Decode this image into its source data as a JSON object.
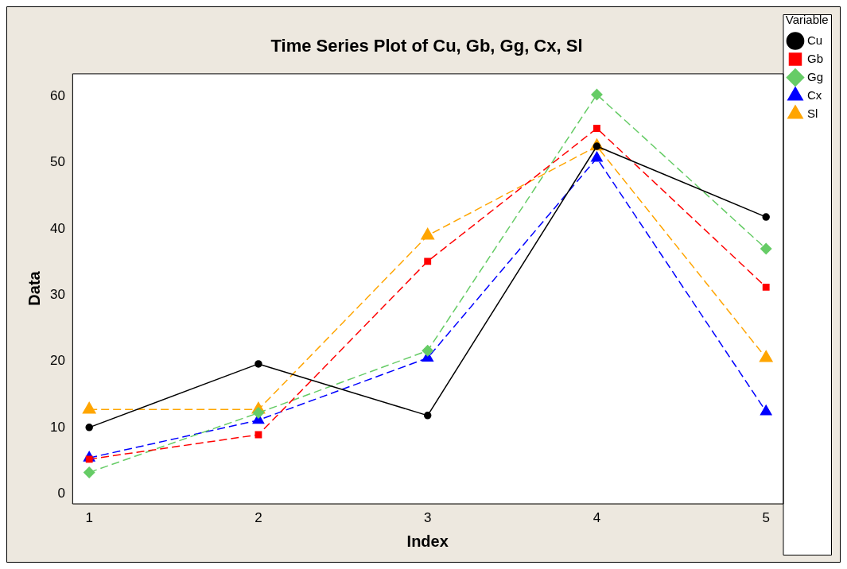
{
  "chart_data": {
    "type": "line",
    "title": "Time Series Plot of Cu, Gb, Gg, Cx, Sl",
    "xlabel": "Index",
    "ylabel": "Data",
    "legend_title": "Variable",
    "legend": "right",
    "grid": false,
    "x": [
      1,
      2,
      3,
      4,
      5
    ],
    "xlim": [
      0.9,
      5.1
    ],
    "xticks": [
      1,
      2,
      3,
      4,
      5
    ],
    "ylim": [
      -1.5,
      63.5
    ],
    "yticks": [
      0,
      10,
      20,
      30,
      40,
      50,
      60
    ],
    "series": [
      {
        "name": "Cu",
        "color": "#000000",
        "marker": "circle",
        "line_style": "solid",
        "values": [
          10,
          19.6,
          11.8,
          52.5,
          41.8
        ]
      },
      {
        "name": "Gb",
        "color": "#ff0000",
        "marker": "square",
        "line_style": "dashed",
        "values": [
          5.2,
          8.9,
          35.1,
          55.2,
          31.2
        ]
      },
      {
        "name": "Gg",
        "color": "#66cc66",
        "marker": "diamond",
        "line_style": "dashed",
        "values": [
          3.2,
          12.2,
          21.6,
          60.3,
          37
        ]
      },
      {
        "name": "Cx",
        "color": "#0000ff",
        "marker": "triangle",
        "line_style": "dashed",
        "values": [
          5.4,
          11.1,
          20.5,
          50.7,
          12.4
        ]
      },
      {
        "name": "Sl",
        "color": "#ffa500",
        "marker": "triangle",
        "line_style": "dashed",
        "values": [
          12.7,
          12.7,
          39,
          52.5,
          20.5
        ]
      }
    ]
  }
}
